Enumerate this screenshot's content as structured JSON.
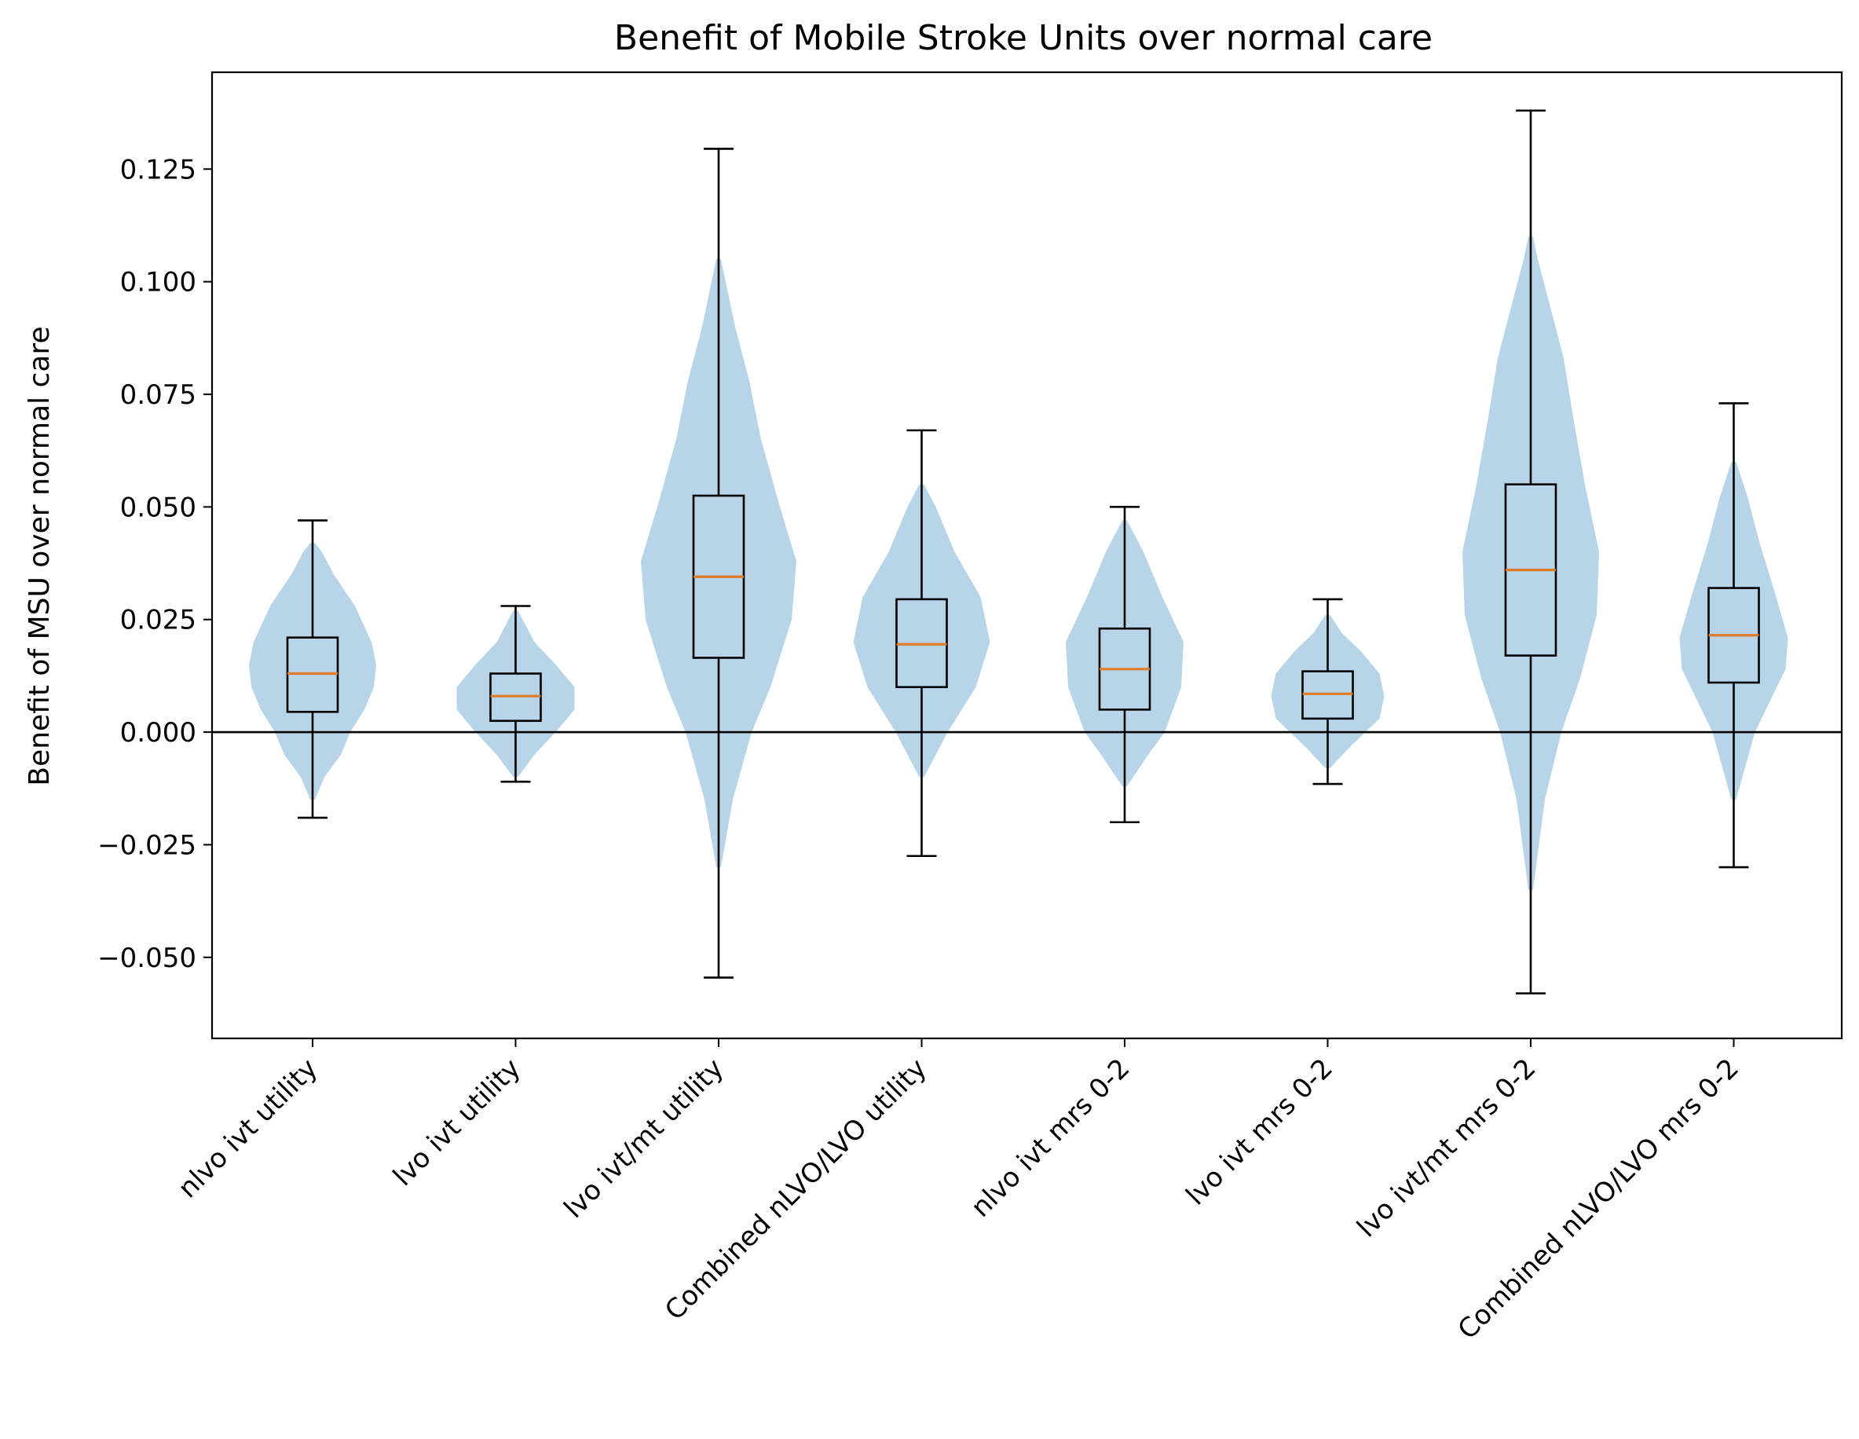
{
  "chart_data": {
    "type": "violin+box",
    "title": "Benefit of Mobile Stroke Units over normal care",
    "xlabel": "",
    "ylabel": "Benefit of MSU over normal care",
    "ylim": [
      -0.068,
      0.1465
    ],
    "yticks": [
      -0.05,
      -0.025,
      0.0,
      0.025,
      0.05,
      0.075,
      0.1,
      0.125
    ],
    "ytick_labels": [
      "−0.050",
      "−0.025",
      "0.000",
      "0.025",
      "0.050",
      "0.075",
      "0.100",
      "0.125"
    ],
    "reference_line_y": 0.0,
    "grid": false,
    "legend": "none",
    "colors": {
      "violin_fill": "#b8d4e8",
      "box_stroke": "#000000",
      "median": "#e07b28",
      "reference_line": "#000000"
    },
    "categories": [
      "nlvo ivt utility",
      "lvo ivt utility",
      "lvo ivt/mt utility",
      "Combined nLVO/LVO utility",
      "nlvo ivt mrs 0-2",
      "lvo ivt mrs 0-2",
      "lvo ivt/mt mrs 0-2",
      "Combined nLVO/LVO mrs 0-2"
    ],
    "boxes": [
      {
        "whisker_low": -0.019,
        "q1": 0.0045,
        "median": 0.013,
        "q3": 0.021,
        "whisker_high": 0.047
      },
      {
        "whisker_low": -0.011,
        "q1": 0.0025,
        "median": 0.008,
        "q3": 0.013,
        "whisker_high": 0.028
      },
      {
        "whisker_low": -0.0545,
        "q1": 0.0165,
        "median": 0.0345,
        "q3": 0.0525,
        "whisker_high": 0.1295
      },
      {
        "whisker_low": -0.0275,
        "q1": 0.01,
        "median": 0.0195,
        "q3": 0.0295,
        "whisker_high": 0.067
      },
      {
        "whisker_low": -0.02,
        "q1": 0.005,
        "median": 0.014,
        "q3": 0.023,
        "whisker_high": 0.05
      },
      {
        "whisker_low": -0.0115,
        "q1": 0.003,
        "median": 0.0085,
        "q3": 0.0135,
        "whisker_high": 0.0295
      },
      {
        "whisker_low": -0.058,
        "q1": 0.017,
        "median": 0.036,
        "q3": 0.055,
        "whisker_high": 0.138
      },
      {
        "whisker_low": -0.03,
        "q1": 0.011,
        "median": 0.0215,
        "q3": 0.032,
        "whisker_high": 0.073
      }
    ],
    "violins": [
      [
        [
          -0.015,
          0.001
        ],
        [
          -0.01,
          0.005
        ],
        [
          -0.005,
          0.012
        ],
        [
          0.0,
          0.016
        ],
        [
          0.005,
          0.022
        ],
        [
          0.01,
          0.026
        ],
        [
          0.015,
          0.027
        ],
        [
          0.02,
          0.025
        ],
        [
          0.028,
          0.018
        ],
        [
          0.035,
          0.009
        ],
        [
          0.04,
          0.004
        ],
        [
          0.042,
          0.001
        ]
      ],
      [
        [
          -0.01,
          0.001
        ],
        [
          -0.005,
          0.008
        ],
        [
          0.0,
          0.017
        ],
        [
          0.005,
          0.025
        ],
        [
          0.01,
          0.025
        ],
        [
          0.015,
          0.017
        ],
        [
          0.02,
          0.008
        ],
        [
          0.025,
          0.003
        ],
        [
          0.027,
          0.001
        ]
      ],
      [
        [
          -0.03,
          0.001
        ],
        [
          -0.015,
          0.006
        ],
        [
          0.0,
          0.014
        ],
        [
          0.01,
          0.022
        ],
        [
          0.025,
          0.031
        ],
        [
          0.038,
          0.033
        ],
        [
          0.05,
          0.026
        ],
        [
          0.065,
          0.018
        ],
        [
          0.078,
          0.013
        ],
        [
          0.09,
          0.007
        ],
        [
          0.1,
          0.003
        ],
        [
          0.105,
          0.001
        ]
      ],
      [
        [
          -0.01,
          0.001
        ],
        [
          0.0,
          0.011
        ],
        [
          0.01,
          0.023
        ],
        [
          0.02,
          0.029
        ],
        [
          0.03,
          0.025
        ],
        [
          0.04,
          0.014
        ],
        [
          0.05,
          0.006
        ],
        [
          0.055,
          0.001
        ]
      ],
      [
        [
          -0.012,
          0.001
        ],
        [
          -0.005,
          0.01
        ],
        [
          0.0,
          0.017
        ],
        [
          0.01,
          0.024
        ],
        [
          0.02,
          0.025
        ],
        [
          0.03,
          0.016
        ],
        [
          0.04,
          0.008
        ],
        [
          0.045,
          0.003
        ],
        [
          0.047,
          0.001
        ]
      ],
      [
        [
          -0.008,
          0.001
        ],
        [
          -0.003,
          0.01
        ],
        [
          0.003,
          0.022
        ],
        [
          0.008,
          0.024
        ],
        [
          0.013,
          0.022
        ],
        [
          0.018,
          0.014
        ],
        [
          0.022,
          0.006
        ],
        [
          0.026,
          0.001
        ]
      ],
      [
        [
          -0.035,
          0.001
        ],
        [
          -0.015,
          0.006
        ],
        [
          0.0,
          0.013
        ],
        [
          0.012,
          0.021
        ],
        [
          0.026,
          0.028
        ],
        [
          0.04,
          0.029
        ],
        [
          0.055,
          0.023
        ],
        [
          0.07,
          0.018
        ],
        [
          0.083,
          0.014
        ],
        [
          0.095,
          0.008
        ],
        [
          0.105,
          0.003
        ],
        [
          0.11,
          0.001
        ]
      ],
      [
        [
          -0.015,
          0.001
        ],
        [
          0.0,
          0.009
        ],
        [
          0.014,
          0.022
        ],
        [
          0.021,
          0.023
        ],
        [
          0.03,
          0.018
        ],
        [
          0.042,
          0.011
        ],
        [
          0.052,
          0.006
        ],
        [
          0.06,
          0.001
        ]
      ]
    ]
  }
}
